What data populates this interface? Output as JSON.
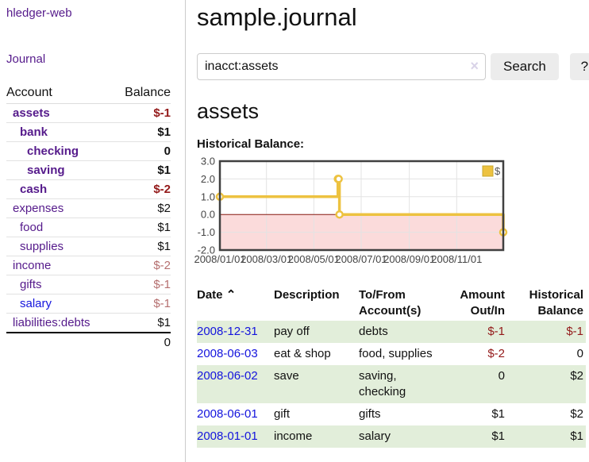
{
  "app": {
    "brand": "hledger-web"
  },
  "sidebar": {
    "journal_link": "Journal",
    "accounts": {
      "account_header": "Account",
      "balance_header": "Balance",
      "rows": [
        {
          "name": "assets",
          "depth": 0,
          "balance": "$-1",
          "bold": true,
          "negative": "strong",
          "link_color": "purple"
        },
        {
          "name": "bank",
          "depth": 1,
          "balance": "$1",
          "bold": true,
          "negative": "none",
          "link_color": "purple"
        },
        {
          "name": "checking",
          "depth": 2,
          "balance": "0",
          "bold": true,
          "negative": "none",
          "link_color": "purple"
        },
        {
          "name": "saving",
          "depth": 2,
          "balance": "$1",
          "bold": true,
          "negative": "none",
          "link_color": "purple"
        },
        {
          "name": "cash",
          "depth": 1,
          "balance": "$-2",
          "bold": true,
          "negative": "strong",
          "link_color": "purple"
        },
        {
          "name": "expenses",
          "depth": 0,
          "balance": "$2",
          "bold": false,
          "negative": "none",
          "link_color": "purple"
        },
        {
          "name": "food",
          "depth": 1,
          "balance": "$1",
          "bold": false,
          "negative": "none",
          "link_color": "purple"
        },
        {
          "name": "supplies",
          "depth": 1,
          "balance": "$1",
          "bold": false,
          "negative": "none",
          "link_color": "purple"
        },
        {
          "name": "income",
          "depth": 0,
          "balance": "$-2",
          "bold": false,
          "negative": "muted",
          "link_color": "purple"
        },
        {
          "name": "gifts",
          "depth": 1,
          "balance": "$-1",
          "bold": false,
          "negative": "muted",
          "link_color": "purple"
        },
        {
          "name": "salary",
          "depth": 1,
          "balance": "$-1",
          "bold": false,
          "negative": "muted",
          "link_color": "blue"
        },
        {
          "name": "liabilities:debts",
          "depth": 0,
          "balance": "$1",
          "bold": false,
          "negative": "none",
          "link_color": "purple"
        }
      ],
      "total": "0"
    }
  },
  "header": {
    "title": "sample.journal"
  },
  "search": {
    "value": "inacct:assets",
    "clear_icon": "×",
    "search_button": "Search",
    "help_button": "?"
  },
  "account_page": {
    "heading": "assets",
    "chart_label": "Historical Balance:"
  },
  "chart_data": {
    "type": "line",
    "step": true,
    "title": "Historical Balance:",
    "x_range": [
      "2008-01-01",
      "2008-12-31"
    ],
    "x_tick_labels": [
      "2008/01/01",
      "2008/03/01",
      "2008/05/01",
      "2008/07/01",
      "2008/09/01",
      "2008/11/01"
    ],
    "y_ticks": [
      "3.0",
      "2.0",
      "1.0",
      "0.0",
      "-1.0",
      "-2.0"
    ],
    "ylim": [
      -2,
      3
    ],
    "grid": true,
    "legend": {
      "label": "$",
      "position": "top-right"
    },
    "series": [
      {
        "name": "$",
        "color": "#edc240",
        "points": [
          {
            "x": "2008-01-01",
            "y": 1
          },
          {
            "x": "2008-06-01",
            "y": 2
          },
          {
            "x": "2008-06-02",
            "y": 2
          },
          {
            "x": "2008-06-03",
            "y": 0
          },
          {
            "x": "2008-12-31",
            "y": -1
          }
        ]
      }
    ],
    "negative_region_color": "#fbdbdb",
    "zero_line_color": "#8b1a10",
    "grid_color": "#e3e3e3",
    "border_color": "#404040",
    "tick_text_color": "#444444"
  },
  "register": {
    "headers": {
      "date": "Date",
      "description": "Description",
      "accounts": "To/From Account(s)",
      "amount": "Amount Out/In",
      "balance": "Historical Balance"
    },
    "sort_icon": "⌃",
    "rows": [
      {
        "date": "2008-12-31",
        "description": "pay off",
        "accounts": "debts",
        "amount": "$-1",
        "balance": "$-1",
        "amount_neg": true,
        "balance_neg": true
      },
      {
        "date": "2008-06-03",
        "description": "eat & shop",
        "accounts": "food, supplies",
        "amount": "$-2",
        "balance": "0",
        "amount_neg": true,
        "balance_neg": false
      },
      {
        "date": "2008-06-02",
        "description": "save",
        "accounts": "saving, checking",
        "amount": "0",
        "balance": "$2",
        "amount_neg": false,
        "balance_neg": false
      },
      {
        "date": "2008-06-01",
        "description": "gift",
        "accounts": "gifts",
        "amount": "$1",
        "balance": "$2",
        "amount_neg": false,
        "balance_neg": false
      },
      {
        "date": "2008-01-01",
        "description": "income",
        "accounts": "salary",
        "amount": "$1",
        "balance": "$1",
        "amount_neg": false,
        "balance_neg": false
      }
    ]
  },
  "colors": {
    "link_purple": "#551a8b",
    "link_blue": "#1414dd",
    "negative_strong": "#931919",
    "negative_muted": "#b56f6f",
    "row_stripe_green": "#e2eeda",
    "chart_gold": "#edc240"
  }
}
